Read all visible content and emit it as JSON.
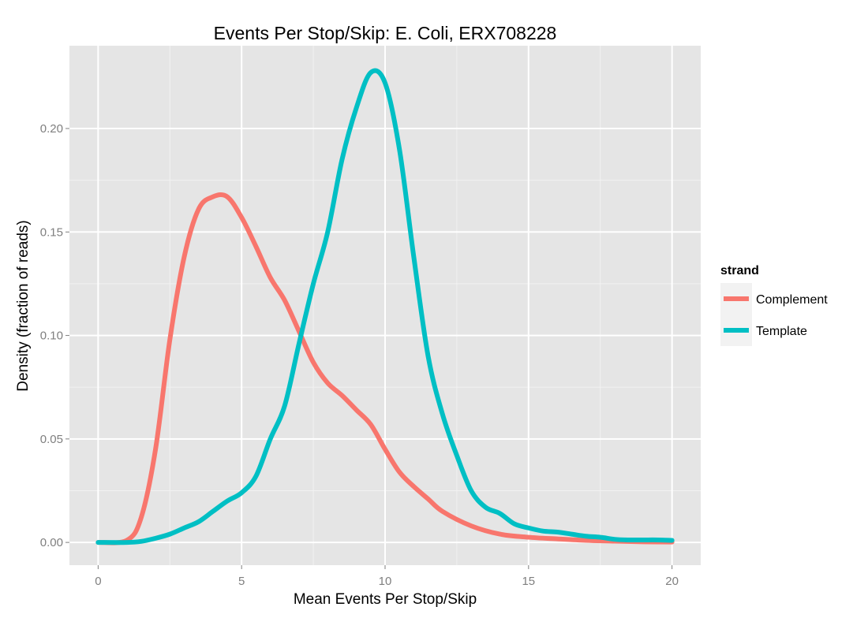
{
  "chart_data": {
    "type": "line",
    "title": "Events Per Stop/Skip: E. Coli, ERX708228",
    "xlabel": "Mean Events Per Stop/Skip",
    "ylabel": "Density (fraction of reads)",
    "xlim": [
      -1,
      21
    ],
    "ylim": [
      -0.011,
      0.24
    ],
    "x_ticks": [
      0,
      5,
      10,
      15,
      20
    ],
    "x_tick_labels": [
      "0",
      "5",
      "10",
      "15",
      "20"
    ],
    "y_ticks": [
      0,
      0.05,
      0.1,
      0.15,
      0.2
    ],
    "y_tick_labels": [
      "0.00",
      "0.05",
      "0.10",
      "0.15",
      "0.20"
    ],
    "grid": true,
    "legend": {
      "title": "strand",
      "placement": "right"
    },
    "series": [
      {
        "name": "Complement",
        "color": "#f8766d",
        "points": [
          [
            0,
            0
          ],
          [
            1,
            0.001
          ],
          [
            1.5,
            0.012
          ],
          [
            2,
            0.045
          ],
          [
            2.5,
            0.098
          ],
          [
            3,
            0.138
          ],
          [
            3.5,
            0.161
          ],
          [
            4,
            0.167
          ],
          [
            4.5,
            0.167
          ],
          [
            5,
            0.157
          ],
          [
            5.5,
            0.143
          ],
          [
            6,
            0.128
          ],
          [
            6.5,
            0.117
          ],
          [
            7,
            0.102
          ],
          [
            7.5,
            0.087
          ],
          [
            8,
            0.077
          ],
          [
            8.5,
            0.071
          ],
          [
            9,
            0.064
          ],
          [
            9.5,
            0.057
          ],
          [
            10,
            0.045
          ],
          [
            10.5,
            0.034
          ],
          [
            11,
            0.027
          ],
          [
            11.5,
            0.021
          ],
          [
            12,
            0.015
          ],
          [
            13,
            0.008
          ],
          [
            14,
            0.004
          ],
          [
            15,
            0.0025
          ],
          [
            16,
            0.0017
          ],
          [
            17,
            0.001
          ],
          [
            18,
            0.0006
          ],
          [
            19,
            0.0003
          ],
          [
            20,
            0.0002
          ]
        ]
      },
      {
        "name": "Template",
        "color": "#00bfc4",
        "points": [
          [
            0,
            0
          ],
          [
            1,
            0
          ],
          [
            1.5,
            0.0005
          ],
          [
            2,
            0.002
          ],
          [
            2.5,
            0.004
          ],
          [
            3,
            0.007
          ],
          [
            3.5,
            0.01
          ],
          [
            4,
            0.015
          ],
          [
            4.5,
            0.02
          ],
          [
            5,
            0.024
          ],
          [
            5.5,
            0.032
          ],
          [
            6,
            0.05
          ],
          [
            6.5,
            0.066
          ],
          [
            7,
            0.096
          ],
          [
            7.5,
            0.125
          ],
          [
            8,
            0.15
          ],
          [
            8.5,
            0.185
          ],
          [
            9,
            0.21
          ],
          [
            9.5,
            0.227
          ],
          [
            10,
            0.222
          ],
          [
            10.5,
            0.19
          ],
          [
            11,
            0.138
          ],
          [
            11.5,
            0.09
          ],
          [
            12,
            0.062
          ],
          [
            12.5,
            0.042
          ],
          [
            13,
            0.025
          ],
          [
            13.5,
            0.017
          ],
          [
            14,
            0.014
          ],
          [
            14.5,
            0.009
          ],
          [
            15,
            0.007
          ],
          [
            15.5,
            0.0055
          ],
          [
            16,
            0.005
          ],
          [
            16.5,
            0.004
          ],
          [
            17,
            0.003
          ],
          [
            17.5,
            0.0025
          ],
          [
            18,
            0.0015
          ],
          [
            18.5,
            0.0012
          ],
          [
            19,
            0.0012
          ],
          [
            19.5,
            0.0012
          ],
          [
            20,
            0.001
          ]
        ]
      }
    ]
  }
}
